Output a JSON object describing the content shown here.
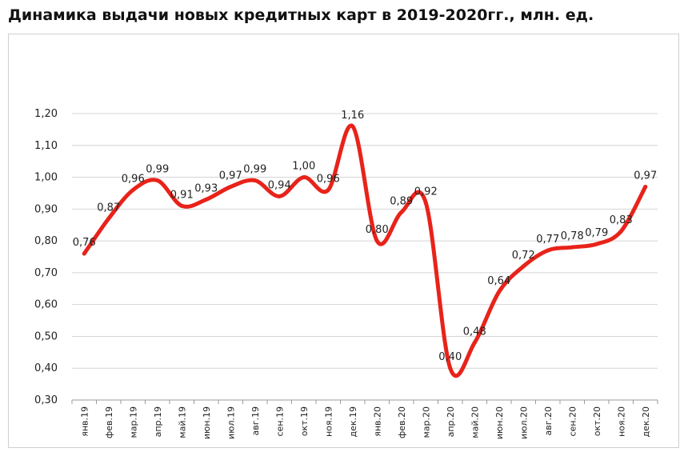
{
  "title": "Динамика выдачи новых кредитных карт в 2019-2020гг., млн. ед.",
  "chart_data": {
    "type": "line",
    "title": "Динамика выдачи новых кредитных карт в 2019-2020гг., млн. ед.",
    "xlabel": "",
    "ylabel": "",
    "ylim": [
      0.3,
      1.2
    ],
    "y_ticks": [
      "0,30",
      "0,40",
      "0,50",
      "0,60",
      "0,70",
      "0,80",
      "0,90",
      "1,00",
      "1,10",
      "1,20"
    ],
    "grid": "horizontal",
    "legend": "none",
    "line_color": "#e8231a",
    "categories": [
      "янв.19",
      "фев.19",
      "мар.19",
      "апр.19",
      "май.19",
      "июн.19",
      "июл.19",
      "авг.19",
      "сен.19",
      "окт.19",
      "ноя.19",
      "дек.19",
      "янв.20",
      "фев.20",
      "мар.20",
      "апр.20",
      "май.20",
      "июн.20",
      "июл.20",
      "авг.20",
      "сен.20",
      "окт.20",
      "ноя.20",
      "дек.20"
    ],
    "values": [
      0.76,
      0.87,
      0.96,
      0.99,
      0.91,
      0.93,
      0.97,
      0.99,
      0.94,
      1.0,
      0.96,
      1.16,
      0.8,
      0.89,
      0.92,
      0.4,
      0.48,
      0.64,
      0.72,
      0.77,
      0.78,
      0.79,
      0.83,
      0.97
    ],
    "data_labels": [
      "0,76",
      "0,87",
      "0,96",
      "0,99",
      "0,91",
      "0,93",
      "0,97",
      "0,99",
      "0,94",
      "1,00",
      "0,96",
      "1,16",
      "0,80",
      "0,89",
      "0,92",
      "0,40",
      "0,48",
      "0,64",
      "0,72",
      "0,77",
      "0,78",
      "0,79",
      "0,83",
      "0,97"
    ]
  }
}
